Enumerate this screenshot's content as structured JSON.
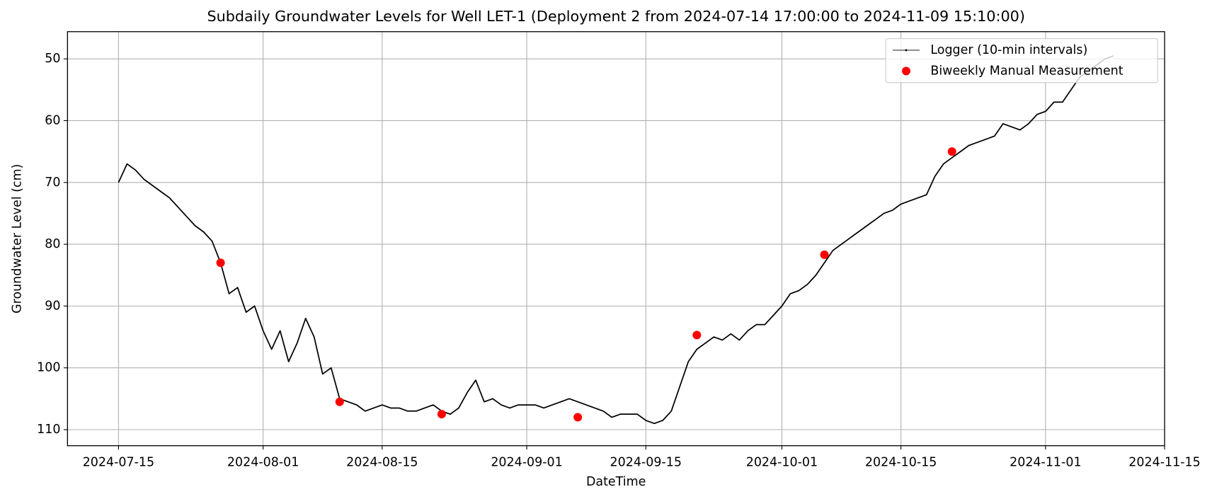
{
  "chart_data": {
    "type": "line",
    "title": "Subdaily Groundwater Levels for Well LET-1 (Deployment 2 from 2024-07-14 17:00:00 to 2024-11-09 15:10:00)",
    "x_label": "DateTime",
    "y_label": "Groundwater Level (cm)",
    "xlim": [
      "2024-07-09",
      "2024-11-15"
    ],
    "xticks": [
      "2024-07-15",
      "2024-08-01",
      "2024-08-15",
      "2024-09-01",
      "2024-09-15",
      "2024-10-01",
      "2024-10-15",
      "2024-11-01",
      "2024-11-15"
    ],
    "ylim": [
      45.6,
      112.6
    ],
    "y_inverted": true,
    "yticks": [
      50,
      60,
      70,
      80,
      90,
      100,
      110
    ],
    "grid": true,
    "legend": "upper right",
    "series": [
      {
        "name": "Logger (10-min intervals)",
        "style": "line",
        "color": "#000000",
        "x": [
          "2024-07-15",
          "2024-07-16",
          "2024-07-17",
          "2024-07-18",
          "2024-07-19",
          "2024-07-20",
          "2024-07-21",
          "2024-07-22",
          "2024-07-23",
          "2024-07-24",
          "2024-07-25",
          "2024-07-26",
          "2024-07-27",
          "2024-07-28",
          "2024-07-29",
          "2024-07-30",
          "2024-07-31",
          "2024-08-01",
          "2024-08-02",
          "2024-08-03",
          "2024-08-04",
          "2024-08-05",
          "2024-08-06",
          "2024-08-07",
          "2024-08-08",
          "2024-08-09",
          "2024-08-10",
          "2024-08-11",
          "2024-08-12",
          "2024-08-13",
          "2024-08-14",
          "2024-08-15",
          "2024-08-16",
          "2024-08-17",
          "2024-08-18",
          "2024-08-19",
          "2024-08-20",
          "2024-08-21",
          "2024-08-22",
          "2024-08-23",
          "2024-08-24",
          "2024-08-25",
          "2024-08-26",
          "2024-08-27",
          "2024-08-28",
          "2024-08-29",
          "2024-08-30",
          "2024-08-31",
          "2024-09-01",
          "2024-09-02",
          "2024-09-03",
          "2024-09-04",
          "2024-09-05",
          "2024-09-06",
          "2024-09-07",
          "2024-09-08",
          "2024-09-09",
          "2024-09-10",
          "2024-09-11",
          "2024-09-12",
          "2024-09-13",
          "2024-09-14",
          "2024-09-15",
          "2024-09-16",
          "2024-09-17",
          "2024-09-18",
          "2024-09-19",
          "2024-09-20",
          "2024-09-21",
          "2024-09-22",
          "2024-09-23",
          "2024-09-24",
          "2024-09-25",
          "2024-09-26",
          "2024-09-27",
          "2024-09-28",
          "2024-09-29",
          "2024-09-30",
          "2024-10-01",
          "2024-10-02",
          "2024-10-03",
          "2024-10-04",
          "2024-10-05",
          "2024-10-06",
          "2024-10-07",
          "2024-10-08",
          "2024-10-09",
          "2024-10-10",
          "2024-10-11",
          "2024-10-12",
          "2024-10-13",
          "2024-10-14",
          "2024-10-15",
          "2024-10-16",
          "2024-10-17",
          "2024-10-18",
          "2024-10-19",
          "2024-10-20",
          "2024-10-21",
          "2024-10-22",
          "2024-10-23",
          "2024-10-24",
          "2024-10-25",
          "2024-10-26",
          "2024-10-27",
          "2024-10-28",
          "2024-10-29",
          "2024-10-30",
          "2024-10-31",
          "2024-11-01",
          "2024-11-02",
          "2024-11-03",
          "2024-11-04",
          "2024-11-05",
          "2024-11-06",
          "2024-11-07",
          "2024-11-08",
          "2024-11-09"
        ],
        "values": [
          70,
          67,
          68,
          69.5,
          70.5,
          71.5,
          72.5,
          74,
          75.5,
          77,
          78,
          79.5,
          83,
          88,
          87,
          91,
          90,
          94,
          97,
          94,
          99,
          96,
          92,
          95,
          101,
          100,
          105,
          105.5,
          106,
          107,
          106.5,
          106,
          106.5,
          106.5,
          107,
          107,
          106.5,
          106,
          107,
          107.5,
          106.5,
          104,
          102,
          105.5,
          105,
          106,
          106.5,
          106,
          106,
          106,
          106.5,
          106,
          105.5,
          105,
          105.5,
          106,
          106.5,
          107,
          108,
          107.5,
          107.5,
          107.5,
          108.5,
          109,
          108.5,
          107,
          103,
          99,
          97,
          96,
          95,
          95.5,
          94.5,
          95.5,
          94,
          93,
          93,
          91.5,
          90,
          88,
          87.5,
          86.5,
          85,
          83,
          81,
          80,
          79,
          78,
          77,
          76,
          75,
          74.5,
          73.5,
          73,
          72.5,
          72,
          69,
          67,
          66,
          65,
          64,
          63.5,
          63,
          62.5,
          60.5,
          61,
          61.5,
          60.5,
          59,
          58.5,
          57,
          57,
          55,
          53,
          52,
          51,
          50,
          49.5
        ]
      },
      {
        "name": "Biweekly Manual Measurement",
        "style": "scatter",
        "color": "#ff0000",
        "x": [
          "2024-07-27",
          "2024-08-10",
          "2024-08-22",
          "2024-09-07",
          "2024-09-21",
          "2024-10-06",
          "2024-10-21"
        ],
        "values": [
          83,
          105.5,
          107.5,
          108,
          94.7,
          81.7,
          65
        ]
      }
    ]
  }
}
